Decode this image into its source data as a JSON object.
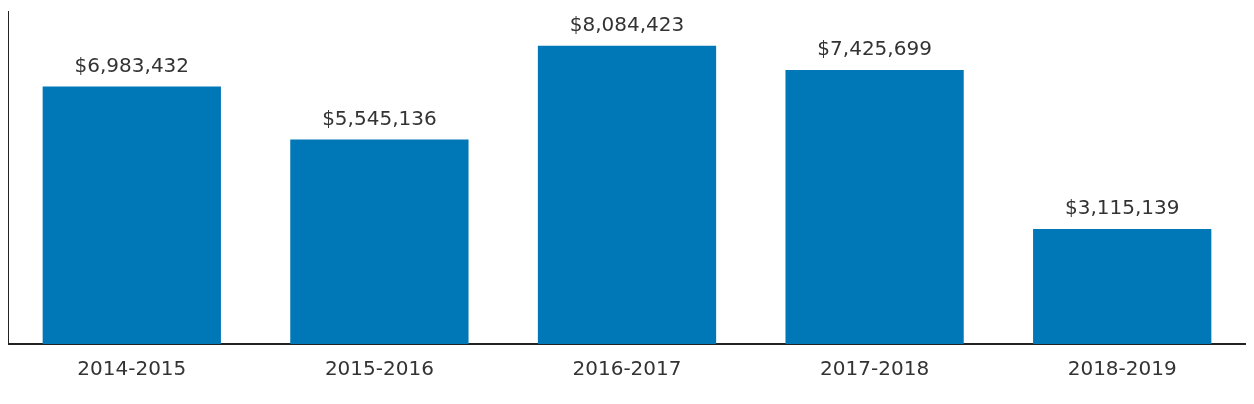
{
  "chart_data": {
    "type": "bar",
    "categories": [
      "2014-2015",
      "2015-2016",
      "2016-2017",
      "2017-2018",
      "2018-2019"
    ],
    "values": [
      6983432,
      5545136,
      8084423,
      7425699,
      3115139
    ],
    "value_labels": [
      "$6,983,432",
      "$5,545,136",
      "$8,084,423",
      "$7,425,699",
      "$3,115,139"
    ],
    "color": "#0077b6",
    "grid": false,
    "legend": false,
    "tick_labels": "x"
  }
}
